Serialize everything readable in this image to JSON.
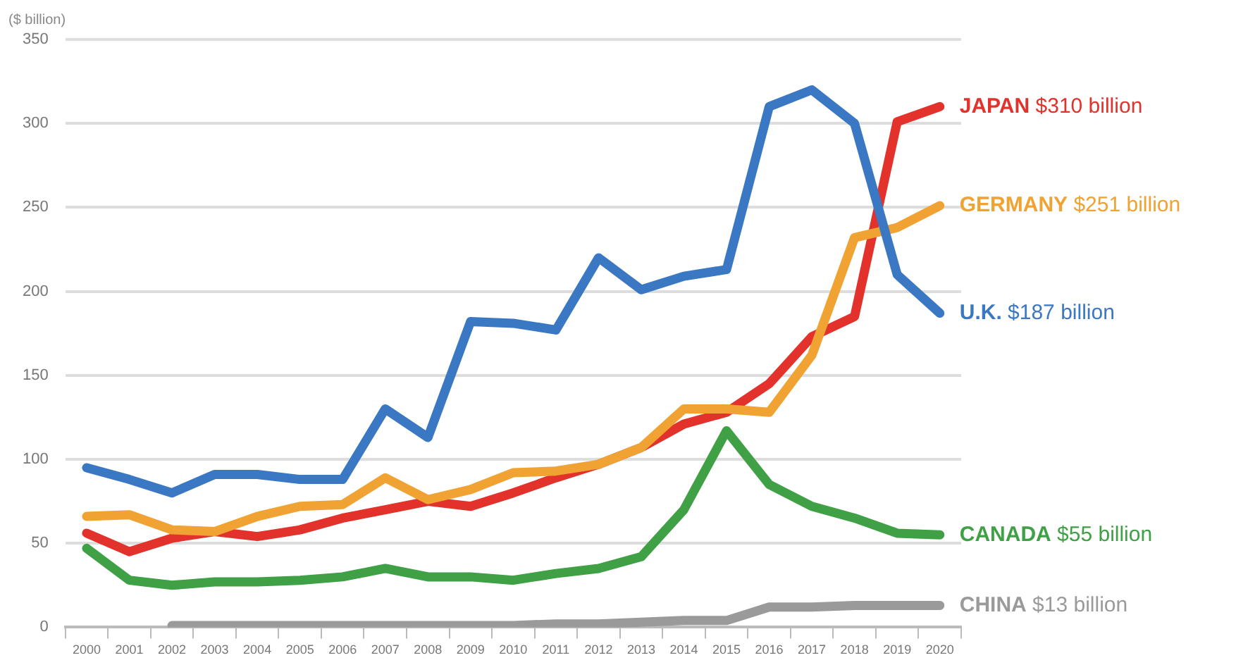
{
  "chart_data": {
    "type": "line",
    "ylabel": "($ billion)",
    "categories": [
      "2000",
      "2001",
      "2002",
      "2003",
      "2004",
      "2005",
      "2006",
      "2007",
      "2008",
      "2009",
      "2010",
      "2011",
      "2012",
      "2013",
      "2014",
      "2015",
      "2016",
      "2017",
      "2018",
      "2019",
      "2020"
    ],
    "series": [
      {
        "name": "U.K. $187 billion",
        "color": "#3b78c4",
        "values": [
          95,
          88,
          80,
          91,
          91,
          88,
          88,
          130,
          113,
          182,
          181,
          177,
          220,
          201,
          209,
          213,
          310,
          320,
          300,
          210,
          187
        ]
      },
      {
        "name": "GERMANY $251 billion",
        "color": "#f0a232",
        "values": [
          66,
          67,
          58,
          57,
          66,
          72,
          73,
          89,
          76,
          82,
          92,
          93,
          97,
          107,
          130,
          130,
          128,
          162,
          232,
          238,
          251
        ]
      },
      {
        "name": "JAPAN $310 billion",
        "color": "#e2322b",
        "values": [
          56,
          45,
          53,
          57,
          54,
          58,
          65,
          70,
          75,
          72,
          80,
          89,
          97,
          107,
          121,
          128,
          145,
          173,
          185,
          301,
          310
        ]
      },
      {
        "name": "CANADA $55 billion",
        "color": "#3fa046",
        "values": [
          47,
          28,
          25,
          27,
          27,
          28,
          30,
          35,
          30,
          30,
          28,
          32,
          35,
          42,
          70,
          117,
          85,
          72,
          65,
          56,
          55
        ]
      },
      {
        "name": "CHINA $13 billion",
        "color": "#9a9a9a",
        "values": [
          null,
          null,
          1,
          1,
          1,
          1,
          1,
          1,
          1,
          1,
          1,
          2,
          2,
          3,
          4,
          4,
          12,
          12,
          13,
          13,
          13
        ]
      }
    ],
    "ylim": [
      0,
      350
    ],
    "yticks": [
      0,
      50,
      100,
      150,
      200,
      250,
      300,
      350
    ],
    "grid": "y",
    "legend": false,
    "marker": "none",
    "line_style": "solid"
  }
}
